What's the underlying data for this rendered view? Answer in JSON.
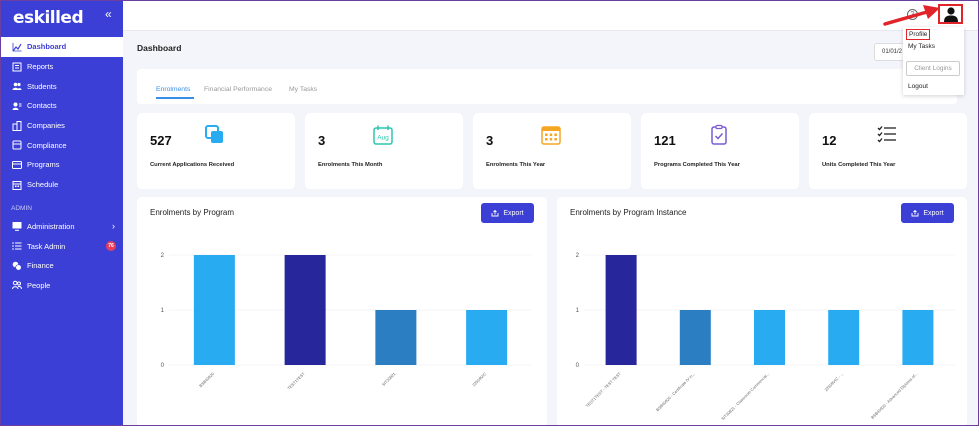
{
  "logo": "eskilled",
  "sidebar": {
    "collapse": "«",
    "items": [
      {
        "label": "Dashboard",
        "icon": "chart-line-icon"
      },
      {
        "label": "Reports",
        "icon": "report-icon"
      },
      {
        "label": "Students",
        "icon": "users-icon"
      },
      {
        "label": "Contacts",
        "icon": "contacts-icon"
      },
      {
        "label": "Companies",
        "icon": "building-icon"
      },
      {
        "label": "Compliance",
        "icon": "compliance-icon"
      },
      {
        "label": "Programs",
        "icon": "programs-icon"
      },
      {
        "label": "Schedule",
        "icon": "calendar-icon"
      }
    ],
    "section": "ADMIN",
    "admin_items": [
      {
        "label": "Administration",
        "icon": "monitor-icon"
      },
      {
        "label": "Task Admin",
        "icon": "list-icon",
        "badge": "76"
      },
      {
        "label": "Finance",
        "icon": "coins-icon"
      },
      {
        "label": "People",
        "icon": "people-icon"
      }
    ]
  },
  "header": {
    "help": "?"
  },
  "user_menu": {
    "profile": "Profile",
    "tasks": "My Tasks",
    "client_logins": "Client Logins",
    "logout": "Logout"
  },
  "page": {
    "title": "Dashboard",
    "date": "01/01/2"
  },
  "tabs": [
    "Enrolments",
    "Financial Performance",
    "My Tasks"
  ],
  "stats": [
    {
      "value": "527",
      "label": "Current Applications Received",
      "icon": "copy-icon"
    },
    {
      "value": "3",
      "label": "Enrolments This Month",
      "icon": "calendar-month-icon",
      "icon_text": "Aug"
    },
    {
      "value": "3",
      "label": "Enrolments This Year",
      "icon": "calendar-grid-icon"
    },
    {
      "value": "121",
      "label": "Programs Completed This Year",
      "icon": "checklist-icon"
    },
    {
      "value": "12",
      "label": "Units Completed This Year",
      "icon": "task-list-icon"
    }
  ],
  "colors": {
    "primary": "#3c3fd6",
    "light_blue": "#29abf2",
    "navy": "#27269a",
    "steel": "#2b7ec1",
    "badge": "#e53e5f",
    "highlight": "#e0242a"
  },
  "export_label": "Export",
  "chart_data": [
    {
      "type": "bar",
      "title": "Enrolments by Program",
      "categories": [
        "BSB40920",
        "TEST1TEST",
        "SIT30821",
        "22509VIC"
      ],
      "values": [
        2,
        2,
        1,
        1
      ],
      "colors": [
        "#29abf2",
        "#27269a",
        "#2b7ec1",
        "#29abf2"
      ],
      "ylim": [
        0,
        2
      ],
      "yticks": [
        "0",
        "1",
        "2"
      ]
    },
    {
      "type": "bar",
      "title": "Enrolments by Program Instance",
      "categories": [
        "TEST1TEST - TEST TEST",
        "BSB40920 - Certificate IV in...",
        "SIT30821 - Classroom Commercial...",
        "22509VIC - ...",
        "BSB40920 - Advanced Diploma of..."
      ],
      "values": [
        2,
        1,
        1,
        1,
        1
      ],
      "colors": [
        "#27269a",
        "#2b7ec1",
        "#29abf2",
        "#29abf2",
        "#29abf2"
      ],
      "ylim": [
        0,
        2
      ],
      "yticks": [
        "0",
        "1",
        "2"
      ]
    }
  ]
}
